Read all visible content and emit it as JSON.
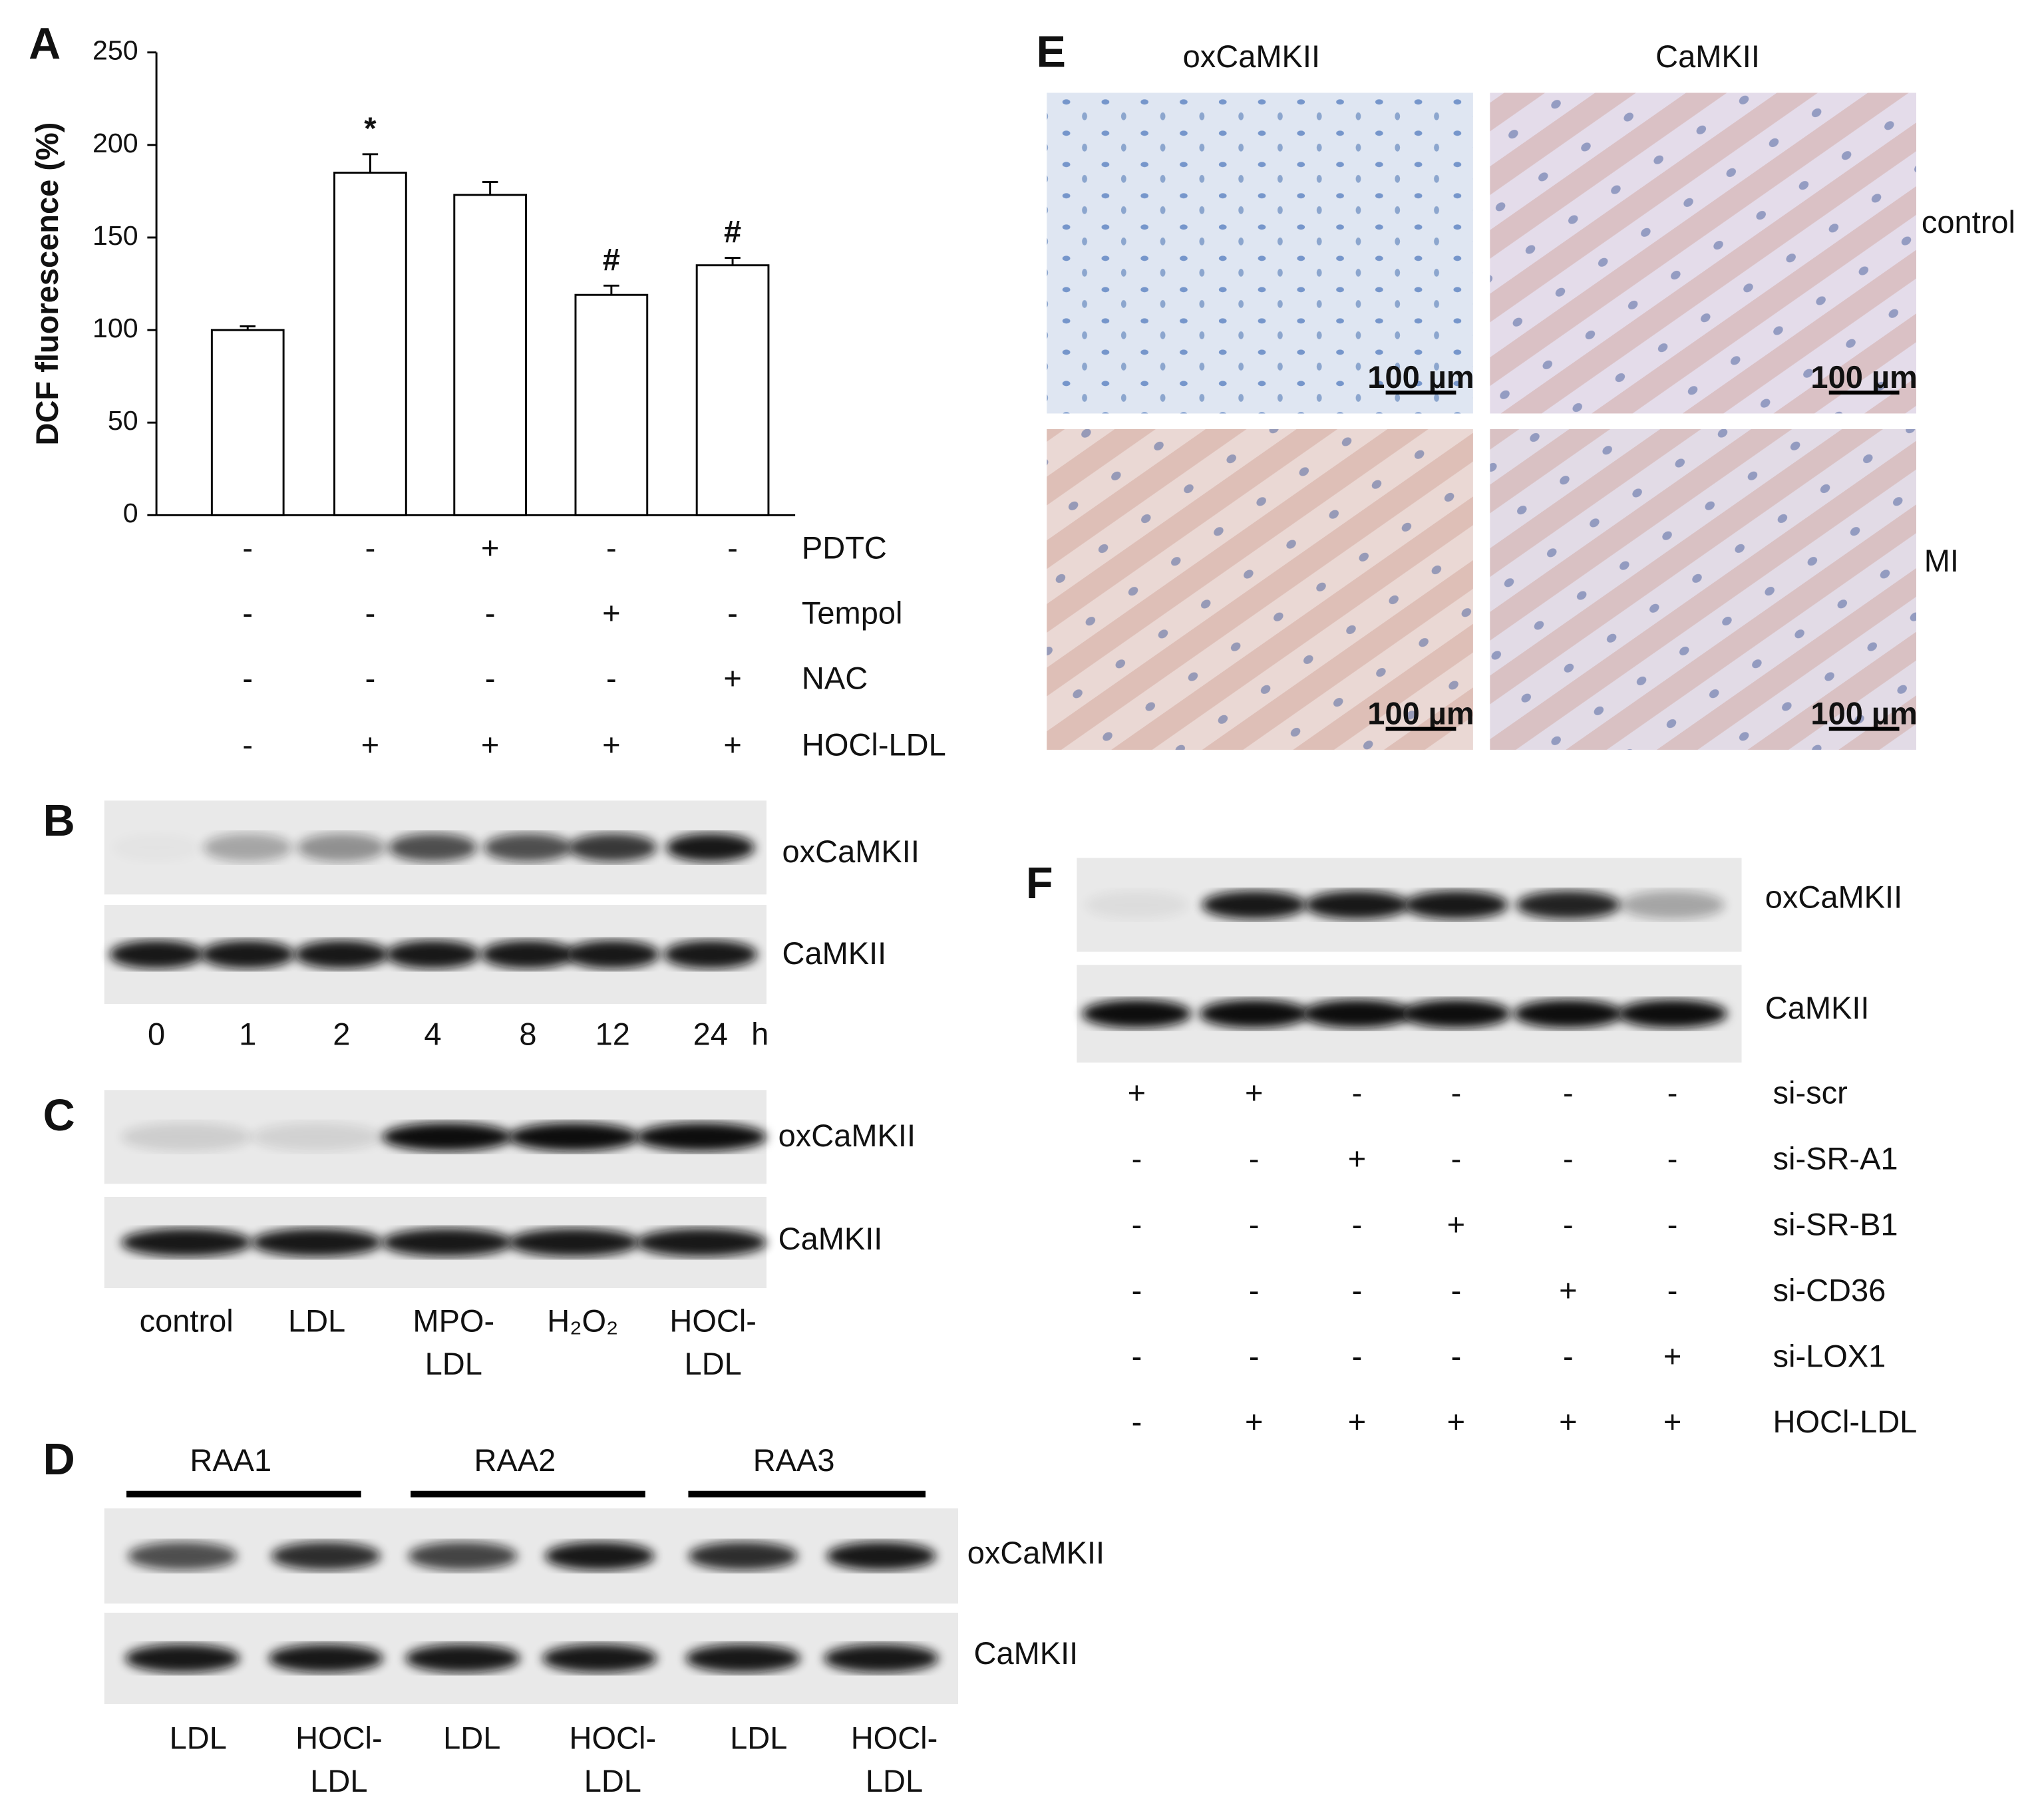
{
  "chart_data": {
    "type": "bar",
    "panel_label": "A",
    "y_label": "DCF fluorescence (%)",
    "values": [
      100,
      185,
      173,
      119,
      135
    ],
    "errors": [
      2,
      10,
      7,
      5,
      4
    ],
    "value_annotations": [
      null,
      "*",
      null,
      "#",
      "#"
    ],
    "color": "#ffffff",
    "edge_color": "#000000",
    "ylim": [
      0,
      250
    ],
    "yticks": [
      0,
      50,
      100,
      150,
      200,
      250
    ],
    "treatments": [
      {
        "name": "PDTC",
        "signs": [
          "-",
          "-",
          "+",
          "-",
          "-"
        ]
      },
      {
        "name": "Tempol",
        "signs": [
          "-",
          "-",
          "-",
          "+",
          "-"
        ]
      },
      {
        "name": "NAC",
        "signs": [
          "-",
          "-",
          "-",
          "-",
          "+"
        ]
      },
      {
        "name": "HOCl-LDL",
        "signs": [
          "-",
          "+",
          "+",
          "+",
          "+"
        ]
      }
    ]
  },
  "panel_b": {
    "label": "B",
    "rows": [
      "oxCaMKII",
      "CaMKII"
    ],
    "lanes": [
      "0",
      "1",
      "2",
      "4",
      "8",
      "12",
      "24"
    ],
    "unit": "h"
  },
  "panel_c": {
    "label": "C",
    "rows": [
      "oxCaMKII",
      "CaMKII"
    ],
    "lanes": [
      [
        "control"
      ],
      [
        "LDL"
      ],
      [
        "MPO-",
        "LDL"
      ],
      [
        "H₂O₂"
      ],
      [
        "HOCl-",
        "LDL"
      ]
    ]
  },
  "panel_d": {
    "label": "D",
    "groups": [
      "RAA1",
      "RAA2",
      "RAA3"
    ],
    "rows": [
      "oxCaMKII",
      "CaMKII"
    ],
    "lanes": [
      [
        "LDL"
      ],
      [
        "HOCl-",
        "LDL"
      ],
      [
        "LDL"
      ],
      [
        "HOCl-",
        "LDL"
      ],
      [
        "LDL"
      ],
      [
        "HOCl-",
        "LDL"
      ]
    ]
  },
  "panel_e": {
    "label": "E",
    "columns": [
      "oxCaMKII",
      "CaMKII"
    ],
    "rows": [
      "control",
      "MI"
    ],
    "scale_bar": "100 µm"
  },
  "panel_f": {
    "label": "F",
    "rows": [
      "oxCaMKII",
      "CaMKII"
    ],
    "treatments": [
      {
        "name": "si-scr",
        "signs": [
          "+",
          "+",
          "-",
          "-",
          "-",
          "-"
        ]
      },
      {
        "name": "si-SR-A1",
        "signs": [
          "-",
          "-",
          "+",
          "-",
          "-",
          "-"
        ]
      },
      {
        "name": "si-SR-B1",
        "signs": [
          "-",
          "-",
          "-",
          "+",
          "-",
          "-"
        ]
      },
      {
        "name": "si-CD36",
        "signs": [
          "-",
          "-",
          "-",
          "-",
          "+",
          "-"
        ]
      },
      {
        "name": "si-LOX1",
        "signs": [
          "-",
          "-",
          "-",
          "-",
          "-",
          "+"
        ]
      },
      {
        "name": "HOCl-LDL",
        "signs": [
          "-",
          "+",
          "+",
          "+",
          "+",
          "+"
        ]
      }
    ]
  }
}
